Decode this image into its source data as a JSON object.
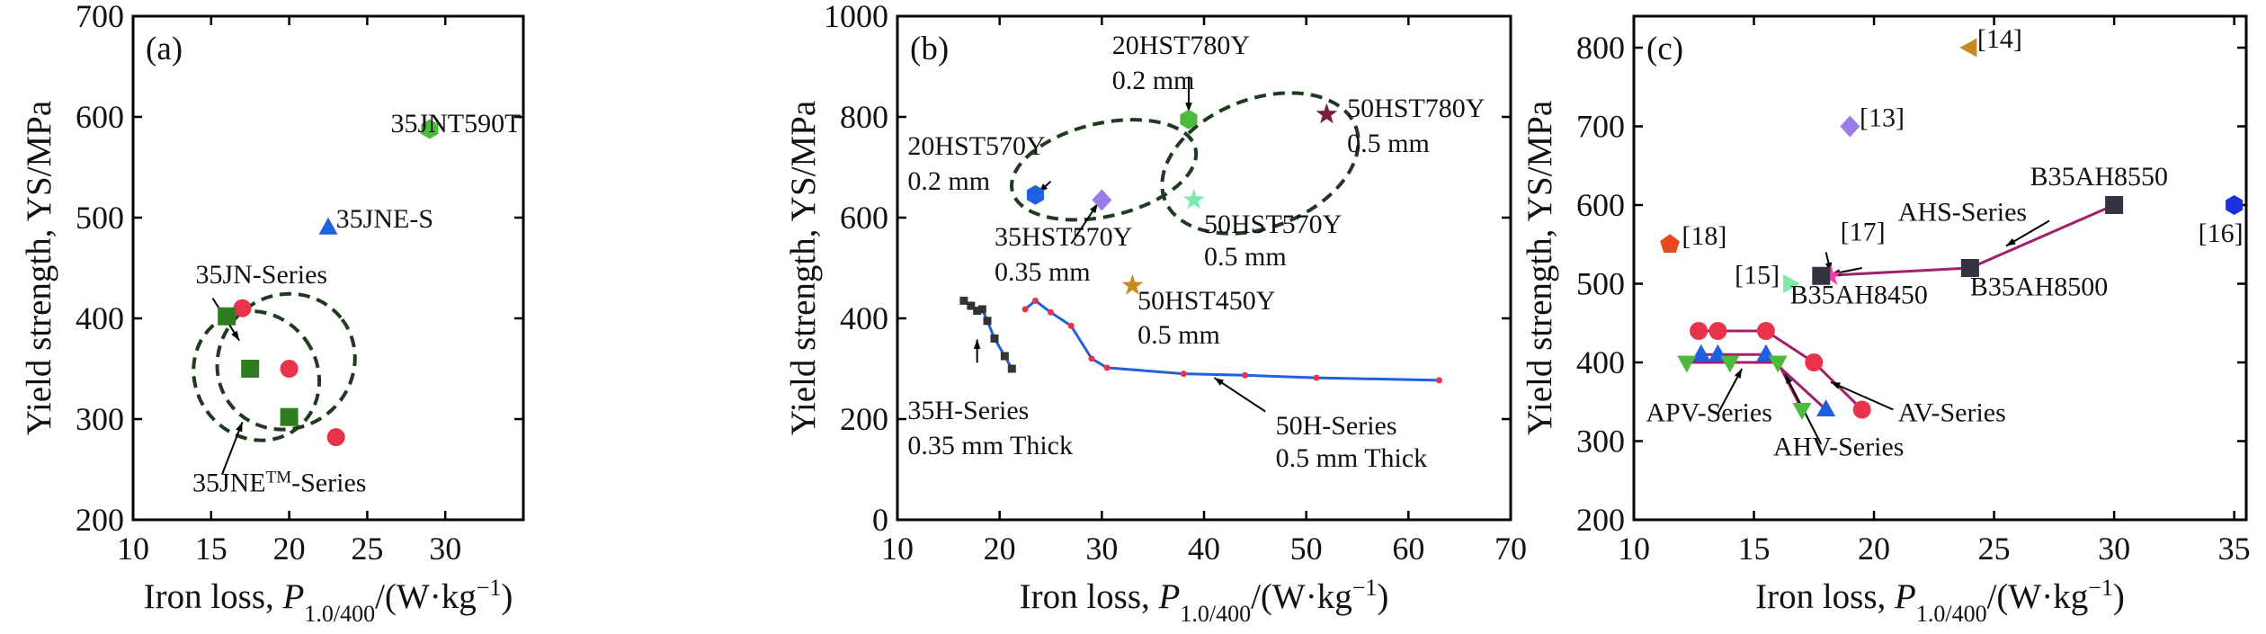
{
  "chart_data": [
    {
      "type": "scatter",
      "panel": "(a)",
      "xlabel": "Iron loss, P1.0/400/(W·kg−1)",
      "ylabel": "Yield strength, YS/MPa",
      "xlim": [
        10,
        35
      ],
      "ylim": [
        200,
        700
      ],
      "xticks": [
        "10",
        "15",
        "20",
        "25",
        "30"
      ],
      "yticks": [
        "200",
        "300",
        "400",
        "500",
        "600",
        "700"
      ],
      "series": [
        {
          "color": "#4cbb3c",
          "marker": "hexagon",
          "points": [
            {
              "x": 29,
              "y": 588
            }
          ]
        },
        {
          "color": "#1f5fe0",
          "marker": "triangle",
          "points": [
            {
              "x": 22.5,
              "y": 490
            }
          ]
        },
        {
          "color": "#e8334a",
          "marker": "circle",
          "points": [
            {
              "x": 17,
              "y": 410
            },
            {
              "x": 20,
              "y": 350
            },
            {
              "x": 23,
              "y": 282
            }
          ]
        },
        {
          "color": "#2e7d1e",
          "marker": "square",
          "points": [
            {
              "x": 16,
              "y": 402
            },
            {
              "x": 17.5,
              "y": 350
            },
            {
              "x": 20,
              "y": 302
            }
          ]
        }
      ],
      "annotations": [
        {
          "text": "35JNT590T",
          "x": 26.5,
          "y": 585
        },
        {
          "text": "35JNE-S",
          "x": 23,
          "y": 490
        },
        {
          "text": "35JN-Series",
          "x": 14,
          "y": 435
        },
        {
          "text": "35JNE",
          "sup": "TM",
          "suffix": "-Series",
          "x": 13.8,
          "y": 228
        }
      ]
    },
    {
      "type": "scatter",
      "panel": "(b)",
      "xlabel": "Iron loss, P1.0/400/(W·kg−1)",
      "ylabel": "Yield strength, YS/MPa",
      "xlim": [
        10,
        70
      ],
      "ylim": [
        0,
        1000
      ],
      "xticks": [
        "10",
        "20",
        "30",
        "40",
        "50",
        "60",
        "70"
      ],
      "yticks": [
        "0",
        "200",
        "400",
        "600",
        "800",
        "1000"
      ],
      "series": [
        {
          "color": "#1f5fe0",
          "marker": "hexagon",
          "points": [
            {
              "x": 23.5,
              "y": 645
            }
          ]
        },
        {
          "color": "#9a7be8",
          "marker": "diamond",
          "points": [
            {
              "x": 30,
              "y": 635
            }
          ]
        },
        {
          "color": "#4cbb3c",
          "marker": "hexagon",
          "points": [
            {
              "x": 38.5,
              "y": 795
            }
          ]
        },
        {
          "color": "#7ee8a8",
          "marker": "star",
          "points": [
            {
              "x": 39,
              "y": 635
            }
          ]
        },
        {
          "color": "#7a1f3f",
          "marker": "star",
          "points": [
            {
              "x": 52,
              "y": 805
            }
          ]
        },
        {
          "color": "#c8891f",
          "marker": "star",
          "points": [
            {
              "x": 33,
              "y": 465
            }
          ]
        },
        {
          "color": "#333333",
          "marker": "square-small",
          "line": "#1f5fe0",
          "points": [
            {
              "x": 16.5,
              "y": 435
            },
            {
              "x": 17.2,
              "y": 425
            },
            {
              "x": 17.8,
              "y": 415
            },
            {
              "x": 18.3,
              "y": 418
            },
            {
              "x": 18.8,
              "y": 395
            },
            {
              "x": 19.5,
              "y": 360
            },
            {
              "x": 20.5,
              "y": 325
            },
            {
              "x": 21.2,
              "y": 300
            }
          ]
        },
        {
          "color": "#e8334a",
          "marker": "dot",
          "line": "#1f5fe0",
          "points": [
            {
              "x": 22.5,
              "y": 418
            },
            {
              "x": 23.5,
              "y": 435
            },
            {
              "x": 25,
              "y": 412
            },
            {
              "x": 27,
              "y": 385
            },
            {
              "x": 29,
              "y": 320
            },
            {
              "x": 30.5,
              "y": 302
            },
            {
              "x": 38,
              "y": 290
            },
            {
              "x": 44,
              "y": 287
            },
            {
              "x": 51,
              "y": 282
            },
            {
              "x": 63,
              "y": 277
            }
          ]
        }
      ],
      "annotations": [
        {
          "text": "20HST780Y",
          "x": 31,
          "y": 925
        },
        {
          "text": "0.2 mm",
          "x": 31,
          "y": 855
        },
        {
          "text": "50HST780Y",
          "x": 54,
          "y": 800
        },
        {
          "text": "0.5 mm",
          "x": 54,
          "y": 730
        },
        {
          "text": "20HST570Y",
          "x": 11,
          "y": 725
        },
        {
          "text": "0.2 mm",
          "x": 11,
          "y": 655
        },
        {
          "text": "35HST570Y",
          "x": 19.5,
          "y": 545
        },
        {
          "text": "0.35 mm",
          "x": 19.5,
          "y": 475
        },
        {
          "text": "50HST570Y",
          "x": 40,
          "y": 570
        },
        {
          "text": "0.5 mm",
          "x": 40,
          "y": 505
        },
        {
          "text": "50HST450Y",
          "x": 33.5,
          "y": 418
        },
        {
          "text": "0.5 mm",
          "x": 33.5,
          "y": 350
        },
        {
          "text": "35H-Series",
          "x": 11,
          "y": 200
        },
        {
          "text": "0.35 mm Thick",
          "x": 11,
          "y": 130
        },
        {
          "text": "50H-Series",
          "x": 47,
          "y": 170
        },
        {
          "text": "0.5 mm Thick",
          "x": 47,
          "y": 105
        }
      ]
    },
    {
      "type": "scatter",
      "panel": "(c)",
      "xlabel": "Iron loss, P1.0/400/(W·kg−1)",
      "ylabel": "Yield strength, YS/MPa",
      "xlim": [
        10,
        35.5
      ],
      "ylim": [
        200,
        840
      ],
      "xticks": [
        "10",
        "15",
        "20",
        "25",
        "30",
        "35"
      ],
      "yticks": [
        "200",
        "300",
        "400",
        "500",
        "600",
        "700",
        "800"
      ],
      "series": [
        {
          "color": "#c8891f",
          "marker": "triangle-left",
          "points": [
            {
              "x": 24,
              "y": 800
            }
          ]
        },
        {
          "color": "#9a7be8",
          "marker": "diamond",
          "points": [
            {
              "x": 19,
              "y": 700
            }
          ]
        },
        {
          "color": "#1f2fe0",
          "marker": "hexagon",
          "points": [
            {
              "x": 35,
              "y": 600
            }
          ]
        },
        {
          "color": "#e84a1f",
          "marker": "pentagon",
          "points": [
            {
              "x": 11.5,
              "y": 550
            }
          ]
        },
        {
          "color": "#7ee8a8",
          "marker": "triangle-right",
          "points": [
            {
              "x": 16.5,
              "y": 500
            }
          ]
        },
        {
          "color": "#ff3aa8",
          "marker": "star",
          "points": [
            {
              "x": 18.2,
              "y": 510
            }
          ]
        },
        {
          "color": "#333344",
          "marker": "square",
          "line": "#a0206e",
          "points": [
            {
              "x": 17.8,
              "y": 510
            },
            {
              "x": 24,
              "y": 520
            },
            {
              "x": 30,
              "y": 600
            }
          ]
        },
        {
          "color": "#e8334a",
          "marker": "circle",
          "line": "#a0206e",
          "points": [
            {
              "x": 12.7,
              "y": 440
            },
            {
              "x": 13.5,
              "y": 440
            },
            {
              "x": 15.5,
              "y": 440
            },
            {
              "x": 17.5,
              "y": 400
            },
            {
              "x": 19.5,
              "y": 340
            }
          ]
        },
        {
          "color": "#1f5fe0",
          "marker": "triangle",
          "line": "#a0206e",
          "points": [
            {
              "x": 12.8,
              "y": 410
            },
            {
              "x": 13.5,
              "y": 410
            },
            {
              "x": 15.5,
              "y": 410
            },
            {
              "x": 18,
              "y": 340
            }
          ]
        },
        {
          "color": "#4cbb3c",
          "marker": "triangle-down",
          "line": "#a0206e",
          "points": [
            {
              "x": 12.2,
              "y": 400
            },
            {
              "x": 14,
              "y": 400
            },
            {
              "x": 16,
              "y": 400
            },
            {
              "x": 17,
              "y": 340
            }
          ]
        }
      ],
      "annotations": [
        {
          "text": "[14]",
          "x": 24.3,
          "y": 800
        },
        {
          "text": "[13]",
          "x": 19.4,
          "y": 700
        },
        {
          "text": "B35AH8550",
          "x": 26.5,
          "y": 625
        },
        {
          "text": "[16]",
          "x": 33.5,
          "y": 553
        },
        {
          "text": "AHS-Series",
          "x": 21,
          "y": 580
        },
        {
          "text": "[17]",
          "x": 18.6,
          "y": 555
        },
        {
          "text": "[18]",
          "x": 12,
          "y": 550
        },
        {
          "text": "[15]",
          "x": 14.2,
          "y": 500
        },
        {
          "text": "B35AH8500",
          "x": 24,
          "y": 485
        },
        {
          "text": "B35AH8450",
          "x": 16.5,
          "y": 475
        },
        {
          "text": "APV-Series",
          "x": 10.5,
          "y": 325
        },
        {
          "text": "AV-Series",
          "x": 21,
          "y": 325
        },
        {
          "text": "AHV-Series",
          "x": 15.8,
          "y": 282
        }
      ]
    }
  ],
  "labels": {
    "a": "(a)",
    "b": "(b)",
    "c": "(c)",
    "ylabel": "Yield strength, YS/MPa",
    "xlabel_pre": "Iron loss, ",
    "xlabel_P": "P",
    "xlabel_sub": "1.0/400",
    "xlabel_post": "/(W·kg",
    "xlabel_sup": "−1",
    "xlabel_close": ")"
  }
}
